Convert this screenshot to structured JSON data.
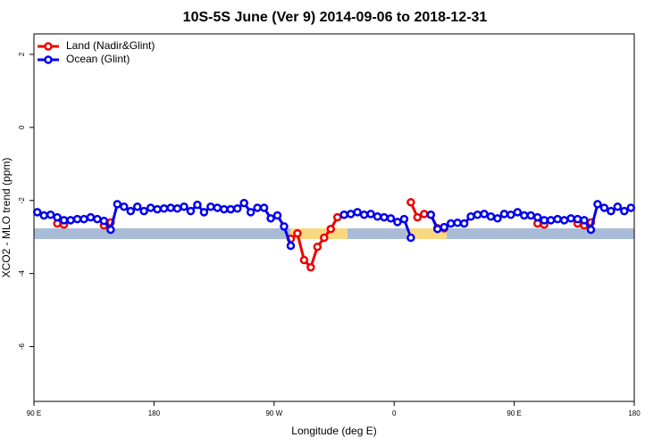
{
  "chart_data": {
    "type": "line",
    "title": "10S-5S June (Ver 9)   2014-09-06 to 2018-12-31",
    "xlabel": "Longitude (deg E)",
    "ylabel": "XCO2 - MLO trend (ppm)",
    "xlim": [
      90,
      540
    ],
    "ylim": [
      -7.5,
      2.56
    ],
    "xticks": [
      {
        "value": 90,
        "label": "90 E"
      },
      {
        "value": 180,
        "label": "180"
      },
      {
        "value": 270,
        "label": "90 W"
      },
      {
        "value": 360,
        "label": "0"
      },
      {
        "value": 450,
        "label": "90 E"
      },
      {
        "value": 540,
        "label": "180"
      }
    ],
    "yticks": [
      2,
      0,
      -2,
      -4,
      -6
    ],
    "legend": "top-left",
    "x": [
      92.5,
      97.5,
      102.5,
      107.5,
      112.5,
      117.5,
      122.5,
      127.5,
      132.5,
      137.5,
      142.5,
      147.5,
      152.5,
      157.5,
      162.5,
      167.5,
      172.5,
      177.5,
      182.5,
      187.5,
      192.5,
      197.5,
      202.5,
      207.5,
      212.5,
      217.5,
      222.5,
      227.5,
      232.5,
      237.5,
      242.5,
      247.5,
      252.5,
      257.5,
      262.5,
      267.5,
      272.5,
      277.5,
      282.5,
      287.5,
      292.5,
      297.5,
      302.5,
      307.5,
      312.5,
      317.5,
      322.5,
      327.5,
      332.5,
      337.5,
      342.5,
      347.5,
      352.5,
      357.5,
      362.5,
      367.5,
      372.5,
      377.5,
      382.5,
      387.5,
      392.5,
      397.5,
      402.5,
      407.5,
      412.5,
      417.5,
      422.5,
      427.5,
      432.5,
      437.5,
      442.5,
      447.5,
      452.5,
      457.5,
      462.5,
      467.5,
      472.5,
      477.5,
      482.5,
      487.5,
      492.5,
      497.5,
      502.5,
      507.5,
      512.5,
      517.5,
      522.5,
      527.5,
      532.5,
      537.5
    ],
    "series": [
      {
        "name": "Land (Nadir&Glint)",
        "color": "#ee0000",
        "values": [
          null,
          null,
          null,
          -2.63,
          -2.66,
          null,
          null,
          null,
          null,
          null,
          -2.68,
          -2.6,
          null,
          null,
          null,
          null,
          null,
          null,
          null,
          null,
          null,
          null,
          null,
          null,
          null,
          null,
          null,
          null,
          null,
          null,
          null,
          null,
          null,
          null,
          null,
          null,
          null,
          null,
          -3.05,
          -2.9,
          -3.63,
          -3.83,
          -3.27,
          -3.02,
          -2.78,
          -2.46,
          -2.39,
          null,
          null,
          null,
          null,
          null,
          null,
          null,
          null,
          null,
          -2.05,
          -2.46,
          -2.37,
          -2.39,
          -2.76,
          -2.76,
          null,
          null,
          null,
          null,
          null,
          null,
          null,
          null,
          null,
          null,
          null,
          null,
          null,
          -2.63,
          -2.66,
          null,
          null,
          null,
          null,
          -2.63,
          -2.68,
          -2.6,
          null,
          null,
          null,
          null,
          null,
          null
        ]
      },
      {
        "name": "Ocean (Glint)",
        "color": "#0000ee",
        "values": [
          -2.32,
          -2.41,
          -2.39,
          -2.46,
          -2.54,
          -2.54,
          -2.51,
          -2.51,
          -2.46,
          -2.51,
          -2.56,
          -2.8,
          -2.1,
          -2.17,
          -2.29,
          -2.17,
          -2.29,
          -2.2,
          -2.24,
          -2.22,
          -2.2,
          -2.22,
          -2.17,
          -2.29,
          -2.12,
          -2.32,
          -2.17,
          -2.2,
          -2.24,
          -2.24,
          -2.22,
          -2.07,
          -2.32,
          -2.2,
          -2.2,
          -2.49,
          -2.41,
          -2.71,
          -3.24,
          null,
          null,
          null,
          null,
          null,
          null,
          null,
          -2.39,
          -2.37,
          -2.32,
          -2.39,
          -2.37,
          -2.44,
          -2.46,
          -2.49,
          -2.59,
          -2.51,
          -3.02,
          null,
          null,
          -2.39,
          -2.78,
          -2.73,
          -2.63,
          -2.61,
          -2.63,
          -2.44,
          -2.39,
          -2.37,
          -2.44,
          -2.49,
          -2.37,
          -2.39,
          -2.32,
          -2.41,
          -2.41,
          -2.46,
          -2.54,
          -2.54,
          -2.51,
          -2.54,
          -2.49,
          -2.51,
          -2.54,
          -2.8,
          -2.1,
          -2.2,
          -2.29,
          -2.17,
          -2.29,
          -2.2
        ]
      }
    ]
  }
}
